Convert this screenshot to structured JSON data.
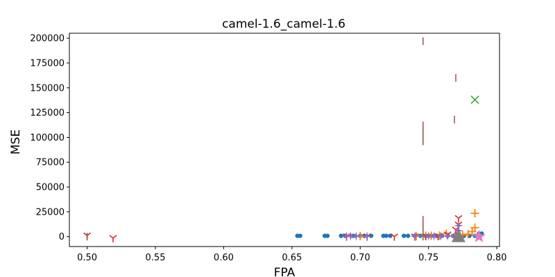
{
  "chart_data": {
    "type": "scatter",
    "title": "camel-1.6_camel-1.6",
    "xlabel": "FPA",
    "ylabel": "MSE",
    "xlim": [
      0.487,
      0.802
    ],
    "ylim": [
      -10000,
      205000
    ],
    "grid": false,
    "x_ticks": [
      "0.50",
      "0.55",
      "0.60",
      "0.65",
      "0.70",
      "0.75",
      "0.80"
    ],
    "y_ticks": [
      "0",
      "25000",
      "50000",
      "75000",
      "100000",
      "125000",
      "150000",
      "175000",
      "200000"
    ],
    "series": [
      {
        "marker": "dot",
        "color": "#1f77b4",
        "points": [
          [
            0.654,
            800
          ],
          [
            0.656,
            800
          ],
          [
            0.674,
            800
          ],
          [
            0.676,
            800
          ],
          [
            0.686,
            800
          ],
          [
            0.689,
            800
          ],
          [
            0.695,
            800
          ],
          [
            0.7,
            800
          ],
          [
            0.703,
            800
          ],
          [
            0.708,
            800
          ],
          [
            0.717,
            800
          ],
          [
            0.719,
            800
          ],
          [
            0.722,
            800
          ],
          [
            0.732,
            800
          ],
          [
            0.735,
            800
          ],
          [
            0.74,
            800
          ],
          [
            0.744,
            800
          ],
          [
            0.748,
            800
          ],
          [
            0.752,
            800
          ],
          [
            0.756,
            800
          ],
          [
            0.76,
            800
          ],
          [
            0.764,
            800
          ],
          [
            0.768,
            800
          ],
          [
            0.772,
            800
          ],
          [
            0.776,
            800
          ],
          [
            0.78,
            800
          ],
          [
            0.784,
            800
          ],
          [
            0.787,
            3000
          ],
          [
            0.789,
            3000
          ]
        ]
      },
      {
        "marker": "plus",
        "color": "#ff7f0e",
        "points": [
          [
            0.784,
            23500
          ],
          [
            0.784,
            9000
          ],
          [
            0.782,
            5000
          ],
          [
            0.779,
            2500
          ],
          [
            0.775,
            1500
          ],
          [
            0.77,
            1500
          ],
          [
            0.763,
            3000
          ],
          [
            0.758,
            1000
          ],
          [
            0.752,
            800
          ],
          [
            0.748,
            800
          ],
          [
            0.741,
            500
          ],
          [
            0.7,
            500
          ]
        ]
      },
      {
        "marker": "x",
        "color": "#2ca02c",
        "points": [
          [
            0.784,
            138000
          ]
        ]
      },
      {
        "marker": "tri_down",
        "color": "#d62728",
        "points": [
          [
            0.5,
            1000
          ],
          [
            0.519,
            -1500
          ],
          [
            0.772,
            18500
          ],
          [
            0.772,
            12000
          ],
          [
            0.77,
            7000
          ],
          [
            0.764,
            2000
          ],
          [
            0.757,
            500
          ],
          [
            0.748,
            500
          ],
          [
            0.74,
            0
          ],
          [
            0.725,
            0
          ],
          [
            0.705,
            0
          ],
          [
            0.69,
            0
          ]
        ]
      },
      {
        "marker": "star4",
        "color": "#9467bd",
        "points": [
          [
            0.69,
            500
          ],
          [
            0.693,
            500
          ],
          [
            0.697,
            500
          ],
          [
            0.705,
            500
          ],
          [
            0.74,
            500
          ],
          [
            0.75,
            500
          ],
          [
            0.754,
            500
          ],
          [
            0.759,
            500
          ],
          [
            0.764,
            500
          ],
          [
            0.769,
            500
          ],
          [
            0.772,
            500
          ],
          [
            0.772,
            6000
          ],
          [
            0.772,
            11000
          ]
        ]
      },
      {
        "marker": "vline",
        "color": "#8c564b",
        "points": [
          [
            0.5,
            0
          ],
          [
            0.746,
            197000
          ],
          [
            0.77,
            160000
          ],
          [
            0.769,
            118000
          ],
          [
            0.746,
            112000
          ],
          [
            0.746,
            108000
          ],
          [
            0.746,
            104000
          ],
          [
            0.746,
            100000
          ],
          [
            0.746,
            96000
          ],
          [
            0.746,
            17000
          ],
          [
            0.746,
            12000
          ],
          [
            0.746,
            8000
          ],
          [
            0.746,
            4000
          ],
          [
            0.746,
            0
          ],
          [
            0.772,
            2000
          ]
        ]
      },
      {
        "marker": "star5",
        "color": "#e377c2",
        "points": [
          [
            0.787,
            0
          ]
        ]
      },
      {
        "marker": "triangle_up",
        "color": "#7f7f7f",
        "points": [
          [
            0.772,
            0
          ]
        ]
      }
    ]
  }
}
